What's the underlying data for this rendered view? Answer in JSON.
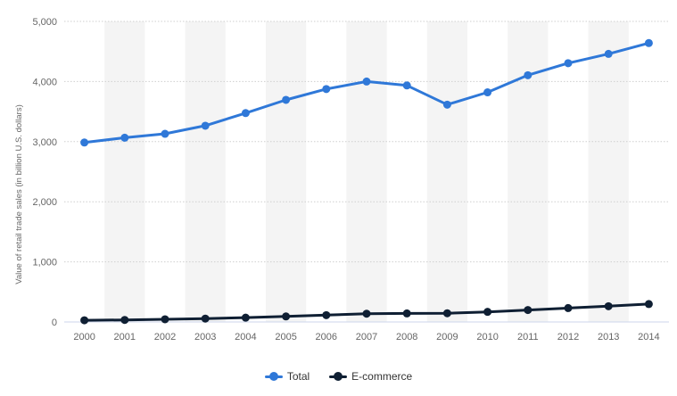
{
  "chart_data": {
    "type": "line",
    "categories": [
      "2000",
      "2001",
      "2002",
      "2003",
      "2004",
      "2005",
      "2006",
      "2007",
      "2008",
      "2009",
      "2010",
      "2011",
      "2012",
      "2013",
      "2014"
    ],
    "series": [
      {
        "name": "Total",
        "color": "#2f78d8",
        "values": [
          2985,
          3065,
          3130,
          3265,
          3475,
          3695,
          3875,
          4000,
          3935,
          3615,
          3820,
          4105,
          4305,
          4460,
          4640
        ]
      },
      {
        "name": "E-commerce",
        "color": "#0f1f33",
        "values": [
          28,
          34,
          45,
          56,
          72,
          92,
          114,
          138,
          142,
          145,
          168,
          199,
          231,
          262,
          298
        ]
      }
    ],
    "yticks": [
      "0",
      "1,000",
      "2,000",
      "3,000",
      "4,000",
      "5,000"
    ],
    "ylim": [
      0,
      5000
    ],
    "ylabel": "Value of retail trade sales (in billion U.S. dollars)",
    "xlabel": "",
    "grid": true,
    "legend_position": "bottom"
  }
}
